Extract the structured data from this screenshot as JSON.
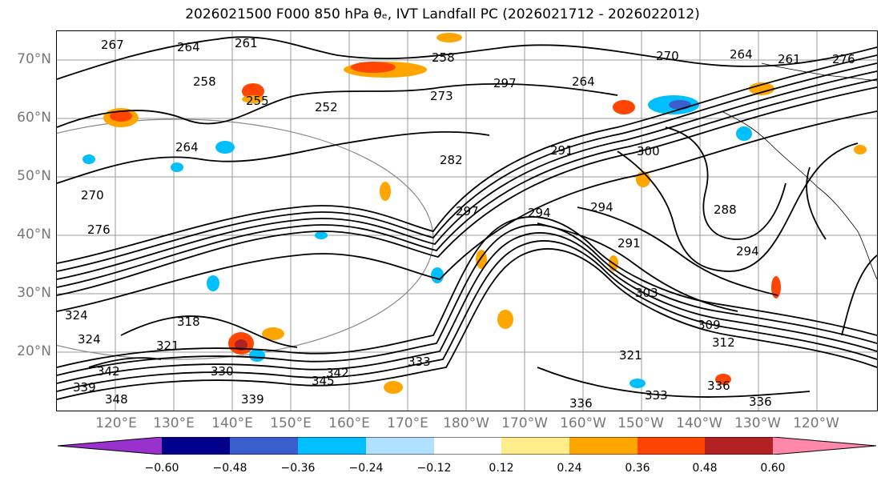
{
  "title": "2026021500 F000 850 hPa θₑ, IVT Landfall PC (2026021712 - 2026022012)",
  "lat_labels": [
    "70°N",
    "60°N",
    "50°N",
    "40°N",
    "30°N",
    "20°N"
  ],
  "lon_labels": [
    "120°E",
    "130°E",
    "140°E",
    "150°E",
    "160°E",
    "170°E",
    "180°W",
    "170°W",
    "160°W",
    "150°W",
    "140°W",
    "130°W",
    "120°W"
  ],
  "colorbar": {
    "colors": [
      "#9932cc",
      "#00008b",
      "#3a5fcd",
      "#00bfff",
      "#b0e2ff",
      "#ffffff",
      "#ffec8b",
      "#ffa500",
      "#ff4500",
      "#b22222",
      "#ff88aa"
    ],
    "ticks": [
      "−0.60",
      "−0.48",
      "−0.36",
      "−0.24",
      "−0.12",
      "0.12",
      "0.24",
      "0.36",
      "0.48",
      "0.60"
    ]
  },
  "contour_labels": [
    "267",
    "264",
    "261",
    "258",
    "255",
    "252",
    "264",
    "270",
    "276",
    "258",
    "273",
    "297",
    "264",
    "270",
    "264",
    "261",
    "276",
    "282",
    "291",
    "300",
    "294",
    "294",
    "288",
    "297",
    "294",
    "291",
    "303",
    "309",
    "312",
    "321",
    "324",
    "330",
    "336",
    "333",
    "342",
    "345",
    "339",
    "342",
    "348",
    "339",
    "336",
    "333",
    "336",
    "324",
    "318",
    "321"
  ]
}
